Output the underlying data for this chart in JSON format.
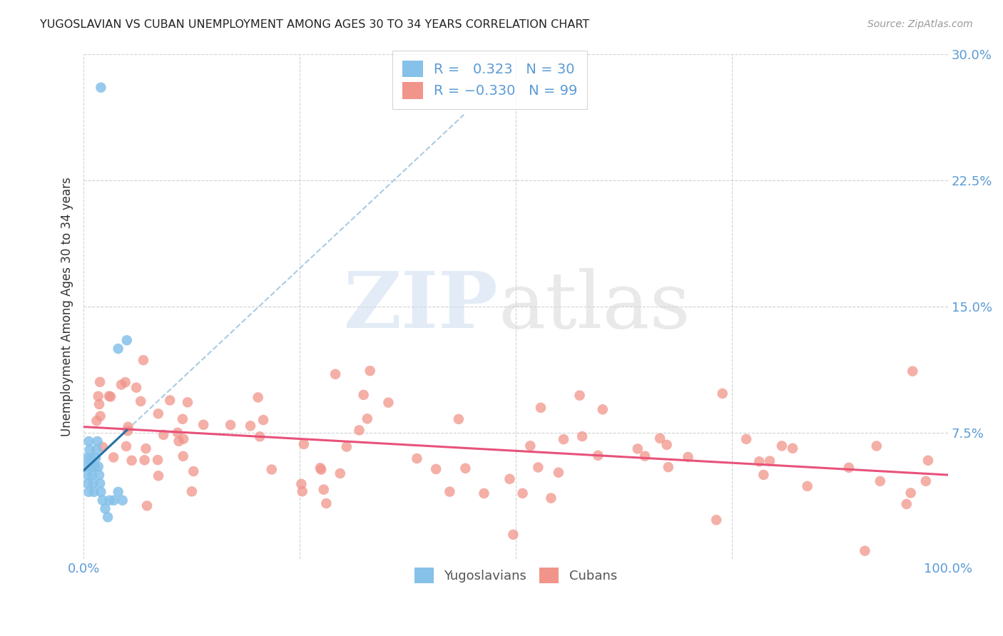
{
  "title": "YUGOSLAVIAN VS CUBAN UNEMPLOYMENT AMONG AGES 30 TO 34 YEARS CORRELATION CHART",
  "source": "Source: ZipAtlas.com",
  "ylabel": "Unemployment Among Ages 30 to 34 years",
  "xlim": [
    0,
    1.0
  ],
  "ylim": [
    0,
    0.3
  ],
  "yugo_R": 0.323,
  "yugo_N": 30,
  "cuba_R": -0.33,
  "cuba_N": 99,
  "yugo_color": "#85C1E9",
  "cuba_color": "#F1948A",
  "yugo_line_color": "#2471A3",
  "cuba_line_color": "#E8527A",
  "dash_color": "#A9CCE3",
  "background_color": "#FFFFFF",
  "tick_color": "#5B9BD5",
  "label_color": "#333333",
  "grid_color": "#CCCCCC"
}
